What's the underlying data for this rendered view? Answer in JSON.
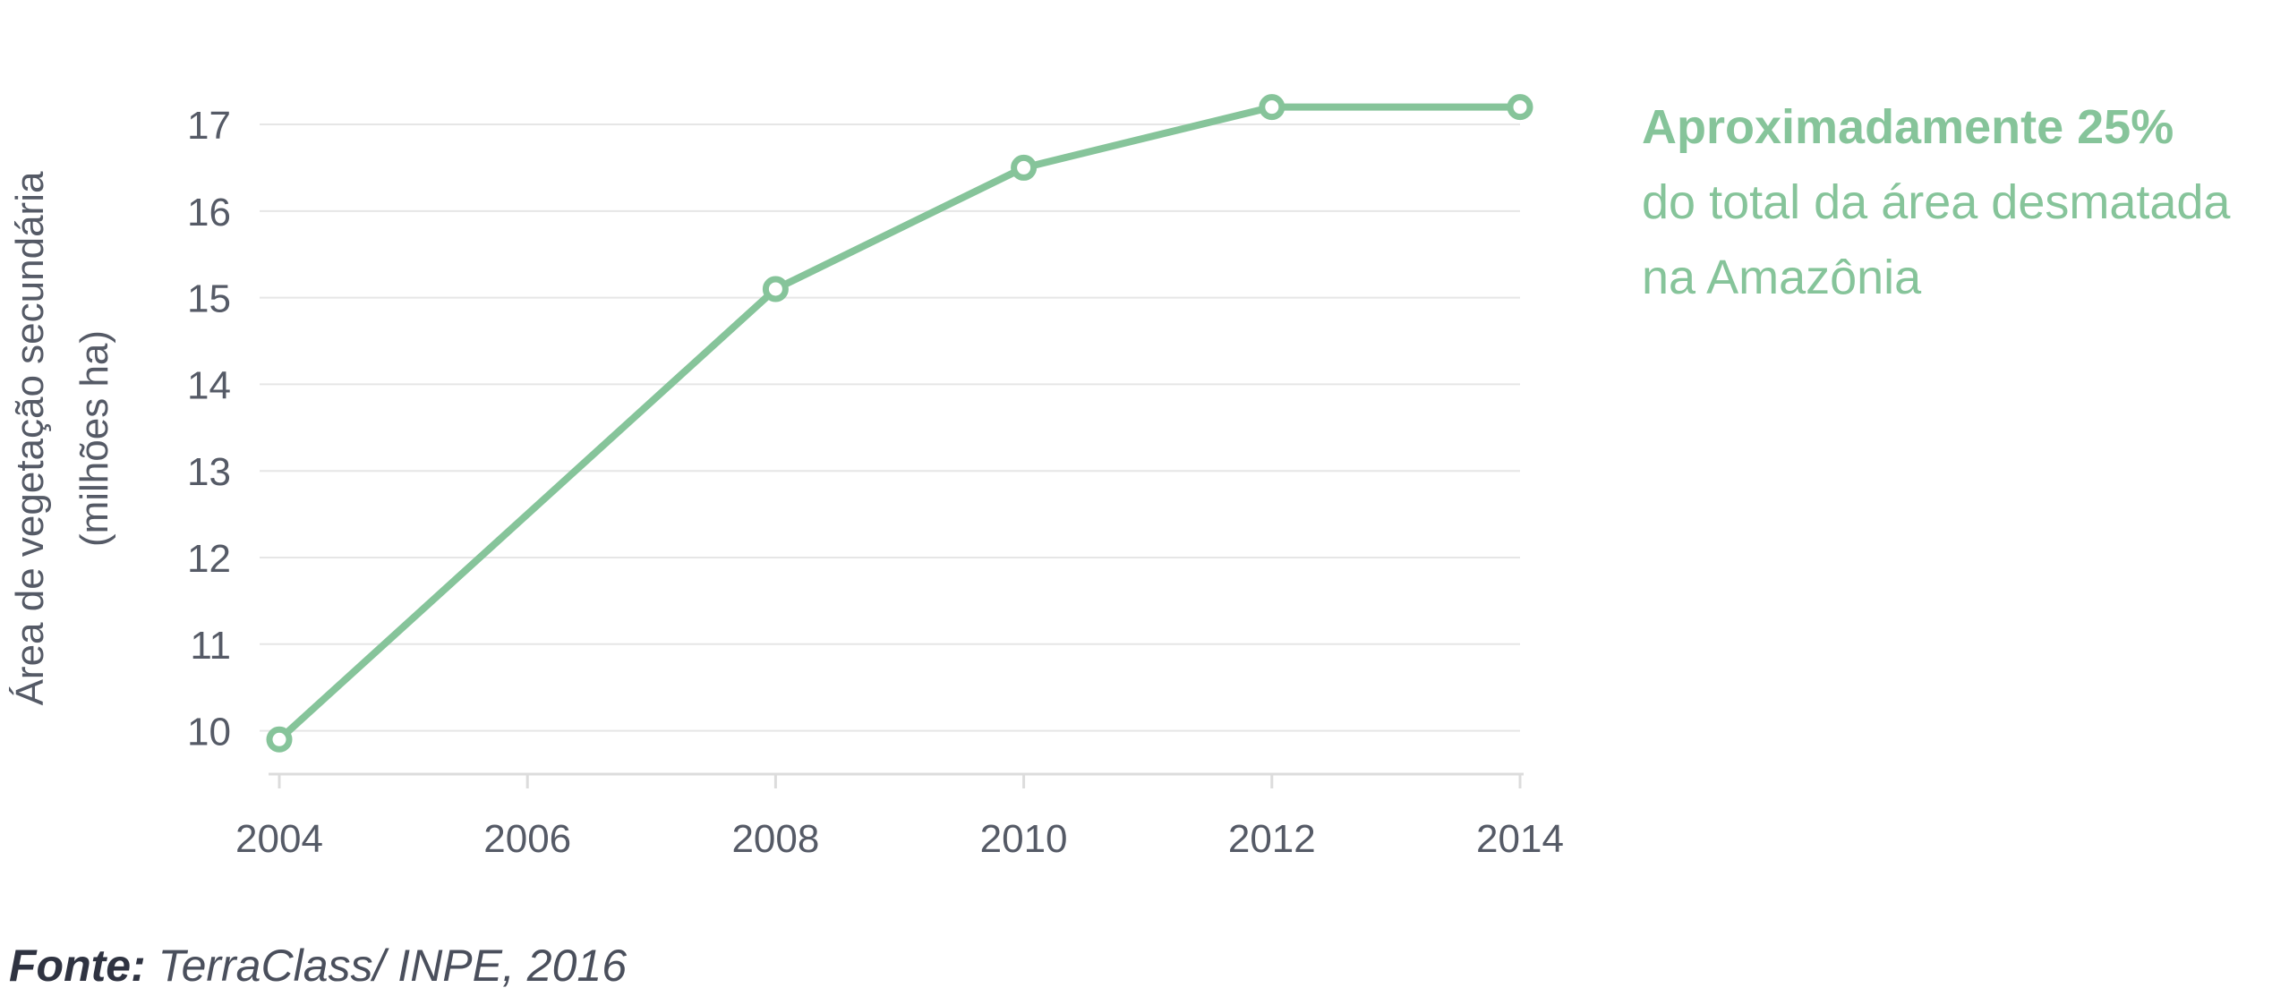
{
  "chart_data": {
    "type": "line",
    "title": "",
    "xlabel": "",
    "ylabel": [
      "Área de vegetação secundária",
      "(milhões ha)"
    ],
    "x": [
      2004,
      2008,
      2010,
      2012,
      2014
    ],
    "series": [
      {
        "values": [
          9.9,
          15.1,
          16.5,
          17.2,
          17.2
        ]
      }
    ],
    "xticks": [
      "2004",
      "2006",
      "2008",
      "2010",
      "2012",
      "2014"
    ],
    "yticks": [
      "10",
      "11",
      "12",
      "13",
      "14",
      "15",
      "16",
      "17"
    ],
    "xlim": [
      2004,
      2014
    ],
    "ylim": [
      9.5,
      17.3
    ],
    "grid": "horizontal",
    "color": "#86c49a"
  },
  "annotation": {
    "highlight": "Aproximadamente 25%",
    "line1": "do total da área desmatada",
    "line2": "na Amazônia"
  },
  "source": {
    "label": "Fonte:",
    "text": " TerraClass/ INPE, 2016"
  }
}
